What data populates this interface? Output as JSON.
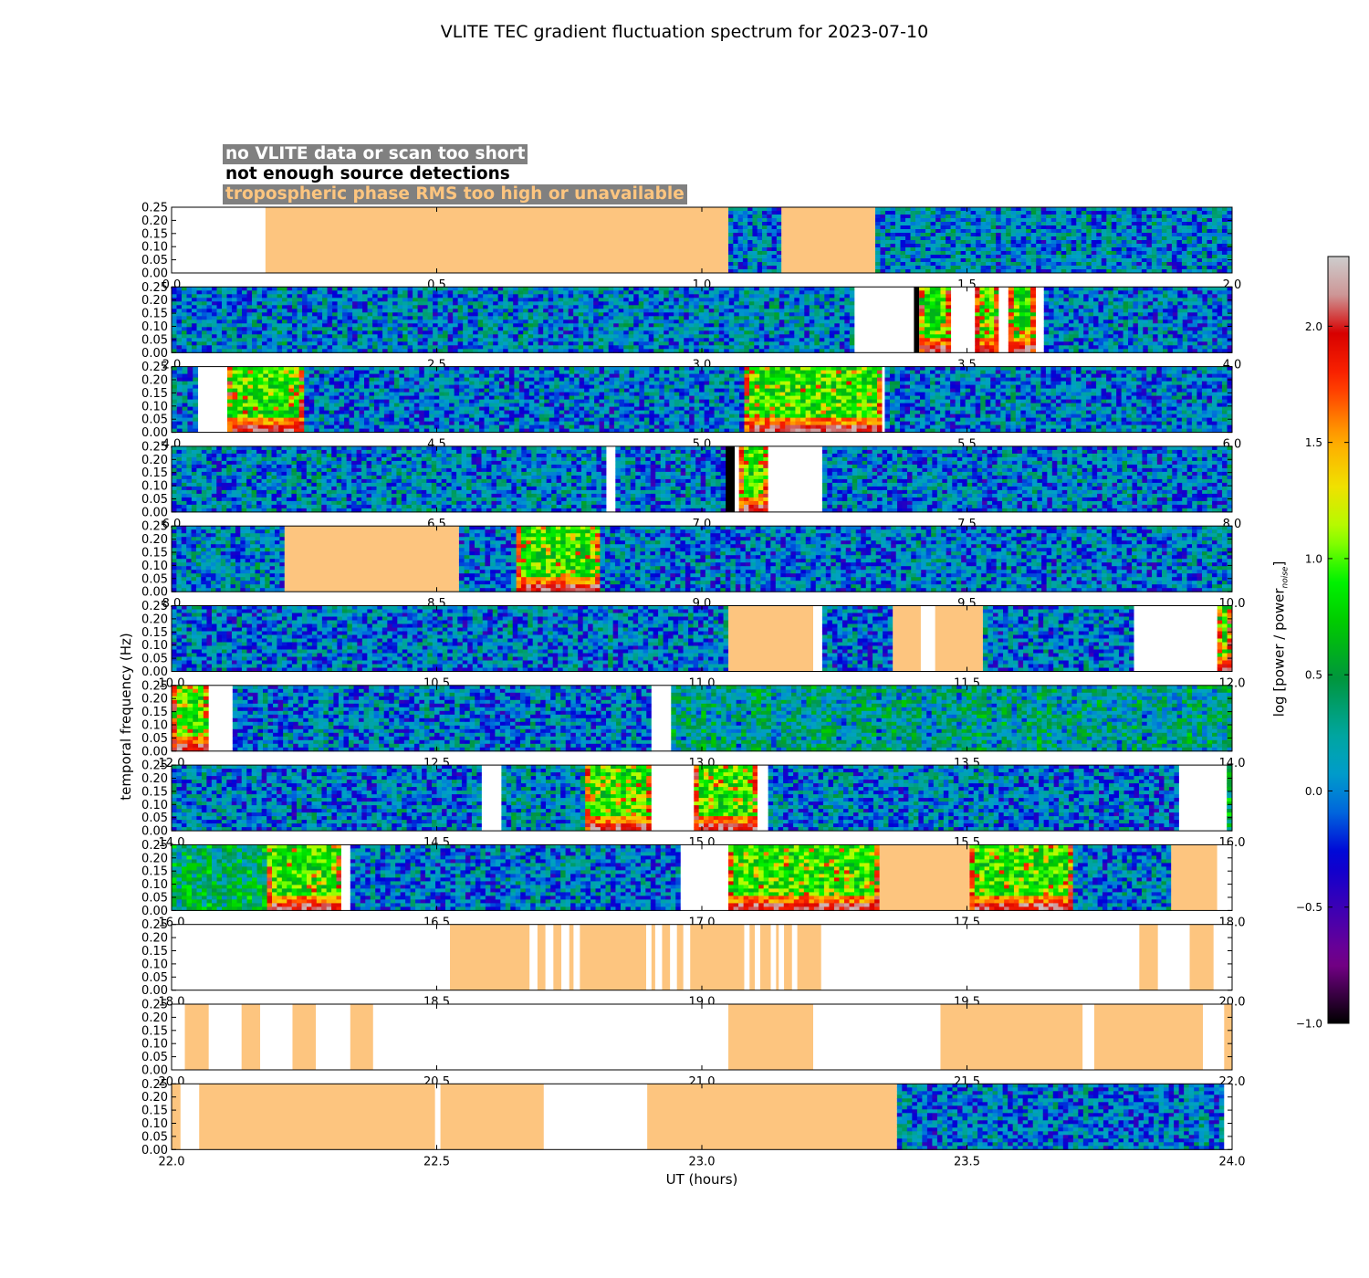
{
  "title": "VLITE TEC gradient fluctuation spectrum for 2023-07-10",
  "legend": [
    "no VLITE data or scan too short",
    "not enough source detections",
    "tropospheric phase RMS too high or unavailable"
  ],
  "colors": {
    "trop": "#fdc57f",
    "nodata": "#ffffff",
    "nodetect": "#000000",
    "legend_bg": "#808080"
  },
  "chart_data": {
    "type": "heatmap",
    "title": "VLITE TEC gradient fluctuation spectrum for 2023-07-10",
    "xlabel": "UT (hours)",
    "ylabel": "temporal frequency (Hz)",
    "colorbar": {
      "label_main": "log [power / power",
      "label_sub": "noise",
      "label_end": "]",
      "range": [
        -1.0,
        2.3
      ],
      "ticks": [
        "−1.0",
        "−0.5",
        "0.0",
        "0.5",
        "1.0",
        "1.5",
        "2.0"
      ],
      "tick_values": [
        -1.0,
        -0.5,
        0.0,
        0.5,
        1.0,
        1.5,
        2.0
      ],
      "colormap": "nipy_spectral"
    },
    "ylim": [
      0,
      0.25
    ],
    "yticks": [
      "0.00",
      "0.05",
      "0.10",
      "0.15",
      "0.20",
      "0.25"
    ],
    "rows": [
      {
        "range": [
          0,
          2
        ],
        "xticks": [
          "0.0",
          "0.5",
          "1.0",
          "1.5",
          "2.0"
        ],
        "segments": [
          {
            "x": [
              0.0,
              0.177
            ],
            "s": "nodata"
          },
          {
            "x": [
              0.177,
              1.05
            ],
            "s": "trop"
          },
          {
            "x": [
              1.05,
              1.15
            ],
            "s": "data",
            "level": 0.05
          },
          {
            "x": [
              1.15,
              1.327
            ],
            "s": "trop"
          },
          {
            "x": [
              1.327,
              2.0
            ],
            "s": "data",
            "level": 0.1
          }
        ]
      },
      {
        "range": [
          2,
          4
        ],
        "xticks": [
          "2.0",
          "2.5",
          "3.0",
          "3.5",
          "4.0"
        ],
        "segments": [
          {
            "x": [
              2.0,
              3.288
            ],
            "s": "data",
            "level": 0.1
          },
          {
            "x": [
              3.288,
              3.4
            ],
            "s": "nodata"
          },
          {
            "x": [
              3.4,
              3.41
            ],
            "s": "nodetect"
          },
          {
            "x": [
              3.41,
              3.47
            ],
            "s": "data",
            "level": 0.3,
            "active": true
          },
          {
            "x": [
              3.47,
              3.515
            ],
            "s": "nodata"
          },
          {
            "x": [
              3.515,
              3.56
            ],
            "s": "data",
            "level": 0.3,
            "active": true
          },
          {
            "x": [
              3.56,
              3.578
            ],
            "s": "nodata"
          },
          {
            "x": [
              3.578,
              3.63
            ],
            "s": "data",
            "level": 0.3,
            "active": true
          },
          {
            "x": [
              3.63,
              3.645
            ],
            "s": "nodata"
          },
          {
            "x": [
              3.645,
              4.0
            ],
            "s": "data",
            "level": 0.05
          }
        ]
      },
      {
        "range": [
          4,
          6
        ],
        "xticks": [
          "4.0",
          "4.5",
          "5.0",
          "5.5",
          "6.0"
        ],
        "segments": [
          {
            "x": [
              4.0,
              4.05
            ],
            "s": "data",
            "level": 0.05
          },
          {
            "x": [
              4.05,
              4.105
            ],
            "s": "nodata"
          },
          {
            "x": [
              4.105,
              4.25
            ],
            "s": "data",
            "level": 0.7,
            "active": true
          },
          {
            "x": [
              4.25,
              5.08
            ],
            "s": "data",
            "level": 0.05
          },
          {
            "x": [
              5.08,
              5.34
            ],
            "s": "data",
            "level": 0.6,
            "active": true
          },
          {
            "x": [
              5.34,
              5.345
            ],
            "s": "nodata"
          },
          {
            "x": [
              5.345,
              6.0
            ],
            "s": "data",
            "level": 0.05
          }
        ]
      },
      {
        "range": [
          6,
          8
        ],
        "xticks": [
          "6.0",
          "6.5",
          "7.0",
          "7.5",
          "8.0"
        ],
        "segments": [
          {
            "x": [
              6.0,
              6.82
            ],
            "s": "data",
            "level": 0.1
          },
          {
            "x": [
              6.82,
              6.837
            ],
            "s": "nodata"
          },
          {
            "x": [
              6.837,
              7.045
            ],
            "s": "data",
            "level": 0.05
          },
          {
            "x": [
              7.045,
              7.062
            ],
            "s": "nodetect"
          },
          {
            "x": [
              7.062,
              7.07
            ],
            "s": "nodata"
          },
          {
            "x": [
              7.07,
              7.125
            ],
            "s": "data",
            "level": 0.4,
            "active": true
          },
          {
            "x": [
              7.125,
              7.227
            ],
            "s": "nodata"
          },
          {
            "x": [
              7.227,
              8.0
            ],
            "s": "data",
            "level": 0.05
          }
        ]
      },
      {
        "range": [
          8,
          10
        ],
        "xticks": [
          "8.0",
          "8.5",
          "9.0",
          "9.5",
          "10.0"
        ],
        "segments": [
          {
            "x": [
              8.0,
              8.213
            ],
            "s": "data",
            "level": 0.1
          },
          {
            "x": [
              8.213,
              8.542
            ],
            "s": "trop"
          },
          {
            "x": [
              8.542,
              8.65
            ],
            "s": "data",
            "level": 0.05
          },
          {
            "x": [
              8.65,
              8.808
            ],
            "s": "data",
            "level": 0.6,
            "active": true
          },
          {
            "x": [
              8.808,
              10.0
            ],
            "s": "data",
            "level": 0.05
          }
        ]
      },
      {
        "range": [
          10,
          12
        ],
        "xticks": [
          "10.0",
          "10.5",
          "11.0",
          "11.5",
          "12.0"
        ],
        "segments": [
          {
            "x": [
              10.0,
              11.05
            ],
            "s": "data",
            "level": 0.05
          },
          {
            "x": [
              11.05,
              11.21
            ],
            "s": "trop"
          },
          {
            "x": [
              11.21,
              11.227
            ],
            "s": "nodata"
          },
          {
            "x": [
              11.227,
              11.36
            ],
            "s": "data",
            "level": 0.05
          },
          {
            "x": [
              11.36,
              11.413
            ],
            "s": "trop"
          },
          {
            "x": [
              11.413,
              11.44
            ],
            "s": "nodata"
          },
          {
            "x": [
              11.44,
              11.53
            ],
            "s": "trop"
          },
          {
            "x": [
              11.53,
              11.815
            ],
            "s": "data",
            "level": 0.05
          },
          {
            "x": [
              11.815,
              11.942
            ],
            "s": "nodata"
          },
          {
            "x": [
              11.942,
              11.972
            ],
            "s": "nodata"
          },
          {
            "x": [
              11.972,
              12.0
            ],
            "s": "data",
            "level": 0.5,
            "active": true
          }
        ]
      },
      {
        "range": [
          12,
          14
        ],
        "xticks": [
          "12.0",
          "12.5",
          "13.0",
          "13.5",
          "14.0"
        ],
        "segments": [
          {
            "x": [
              12.0,
              12.07
            ],
            "s": "data",
            "level": 0.4,
            "active": true
          },
          {
            "x": [
              12.07,
              12.115
            ],
            "s": "nodata"
          },
          {
            "x": [
              12.115,
              12.905
            ],
            "s": "data",
            "level": 0.05
          },
          {
            "x": [
              12.905,
              12.942
            ],
            "s": "nodata"
          },
          {
            "x": [
              12.942,
              14.0
            ],
            "s": "data",
            "level": 0.3
          }
        ]
      },
      {
        "range": [
          14,
          16
        ],
        "xticks": [
          "14.0",
          "14.5",
          "15.0",
          "15.5",
          "16.0"
        ],
        "segments": [
          {
            "x": [
              14.0,
              14.585
            ],
            "s": "data",
            "level": 0.05
          },
          {
            "x": [
              14.585,
              14.622
            ],
            "s": "nodata"
          },
          {
            "x": [
              14.622,
              14.78
            ],
            "s": "data",
            "level": 0.15
          },
          {
            "x": [
              14.78,
              14.905
            ],
            "s": "data",
            "level": 0.5,
            "active": true
          },
          {
            "x": [
              14.905,
              14.985
            ],
            "s": "nodata"
          },
          {
            "x": [
              14.985,
              15.105
            ],
            "s": "data",
            "level": 0.8,
            "active": true
          },
          {
            "x": [
              15.105,
              15.125
            ],
            "s": "nodata"
          },
          {
            "x": [
              15.125,
              15.9
            ],
            "s": "data",
            "level": 0.05
          },
          {
            "x": [
              15.9,
              15.99
            ],
            "s": "nodata"
          },
          {
            "x": [
              15.99,
              16.0
            ],
            "s": "data",
            "level": 0.5
          }
        ]
      },
      {
        "range": [
          16,
          18
        ],
        "xticks": [
          "16.0",
          "16.5",
          "17.0",
          "17.5",
          "18.0"
        ],
        "segments": [
          {
            "x": [
              16.0,
              16.18
            ],
            "s": "data",
            "level": 0.5
          },
          {
            "x": [
              16.18,
              16.32
            ],
            "s": "data",
            "level": 0.6,
            "active": true
          },
          {
            "x": [
              16.32,
              16.337
            ],
            "s": "nodata"
          },
          {
            "x": [
              16.337,
              16.96
            ],
            "s": "data",
            "level": 0.05
          },
          {
            "x": [
              16.96,
              17.05
            ],
            "s": "nodata"
          },
          {
            "x": [
              17.05,
              17.335
            ],
            "s": "data",
            "level": 0.5,
            "active": true
          },
          {
            "x": [
              17.335,
              17.505
            ],
            "s": "trop"
          },
          {
            "x": [
              17.505,
              17.7
            ],
            "s": "data",
            "level": 0.5,
            "active": true
          },
          {
            "x": [
              17.7,
              17.885
            ],
            "s": "data",
            "level": 0.05
          },
          {
            "x": [
              17.885,
              17.972
            ],
            "s": "trop"
          },
          {
            "x": [
              17.972,
              18.0
            ],
            "s": "nodata"
          }
        ]
      },
      {
        "range": [
          18,
          20
        ],
        "xticks": [
          "18.0",
          "18.5",
          "19.0",
          "19.5",
          "20.0"
        ],
        "segments": [
          {
            "x": [
              18.525,
              18.675
            ],
            "s": "trop"
          },
          {
            "x": [
              18.69,
              18.705
            ],
            "s": "trop"
          },
          {
            "x": [
              18.72,
              18.735
            ],
            "s": "trop"
          },
          {
            "x": [
              18.75,
              18.758
            ],
            "s": "trop"
          },
          {
            "x": [
              18.77,
              18.895
            ],
            "s": "trop"
          },
          {
            "x": [
              18.905,
              18.912
            ],
            "s": "trop"
          },
          {
            "x": [
              18.925,
              18.94
            ],
            "s": "trop"
          },
          {
            "x": [
              18.953,
              18.965
            ],
            "s": "trop"
          },
          {
            "x": [
              18.978,
              19.08
            ],
            "s": "trop"
          },
          {
            "x": [
              19.09,
              19.1
            ],
            "s": "trop"
          },
          {
            "x": [
              19.11,
              19.13
            ],
            "s": "trop"
          },
          {
            "x": [
              19.14,
              19.145
            ],
            "s": "trop"
          },
          {
            "x": [
              19.155,
              19.17
            ],
            "s": "trop"
          },
          {
            "x": [
              19.18,
              19.225
            ],
            "s": "trop"
          },
          {
            "x": [
              19.825,
              19.86
            ],
            "s": "trop"
          },
          {
            "x": [
              19.92,
              19.965
            ],
            "s": "trop"
          }
        ]
      },
      {
        "range": [
          20,
          22
        ],
        "xticks": [
          "20.0",
          "20.5",
          "21.0",
          "21.5",
          "22.0"
        ],
        "segments": [
          {
            "x": [
              20.025,
              20.07
            ],
            "s": "trop"
          },
          {
            "x": [
              20.132,
              20.167
            ],
            "s": "trop"
          },
          {
            "x": [
              20.228,
              20.272
            ],
            "s": "trop"
          },
          {
            "x": [
              20.337,
              20.38
            ],
            "s": "trop"
          },
          {
            "x": [
              21.05,
              21.21
            ],
            "s": "trop"
          },
          {
            "x": [
              21.45,
              21.718
            ],
            "s": "trop"
          },
          {
            "x": [
              21.74,
              21.945
            ],
            "s": "trop"
          },
          {
            "x": [
              21.985,
              22.0
            ],
            "s": "trop"
          }
        ]
      },
      {
        "range": [
          22,
          24
        ],
        "xticks": [
          "22.0",
          "22.5",
          "23.0",
          "23.5",
          "24.0"
        ],
        "segments": [
          {
            "x": [
              22.0,
              22.017
            ],
            "s": "trop"
          },
          {
            "x": [
              22.017,
              22.052
            ],
            "s": "nodata"
          },
          {
            "x": [
              22.052,
              22.497
            ],
            "s": "trop"
          },
          {
            "x": [
              22.497,
              22.507
            ],
            "s": "nodata"
          },
          {
            "x": [
              22.507,
              22.702
            ],
            "s": "trop"
          },
          {
            "x": [
              22.702,
              22.897
            ],
            "s": "nodata"
          },
          {
            "x": [
              22.897,
              23.368
            ],
            "s": "trop"
          },
          {
            "x": [
              23.368,
              23.985
            ],
            "s": "data",
            "level": 0.05
          },
          {
            "x": [
              23.985,
              24.0
            ],
            "s": "nodata"
          }
        ]
      }
    ]
  }
}
